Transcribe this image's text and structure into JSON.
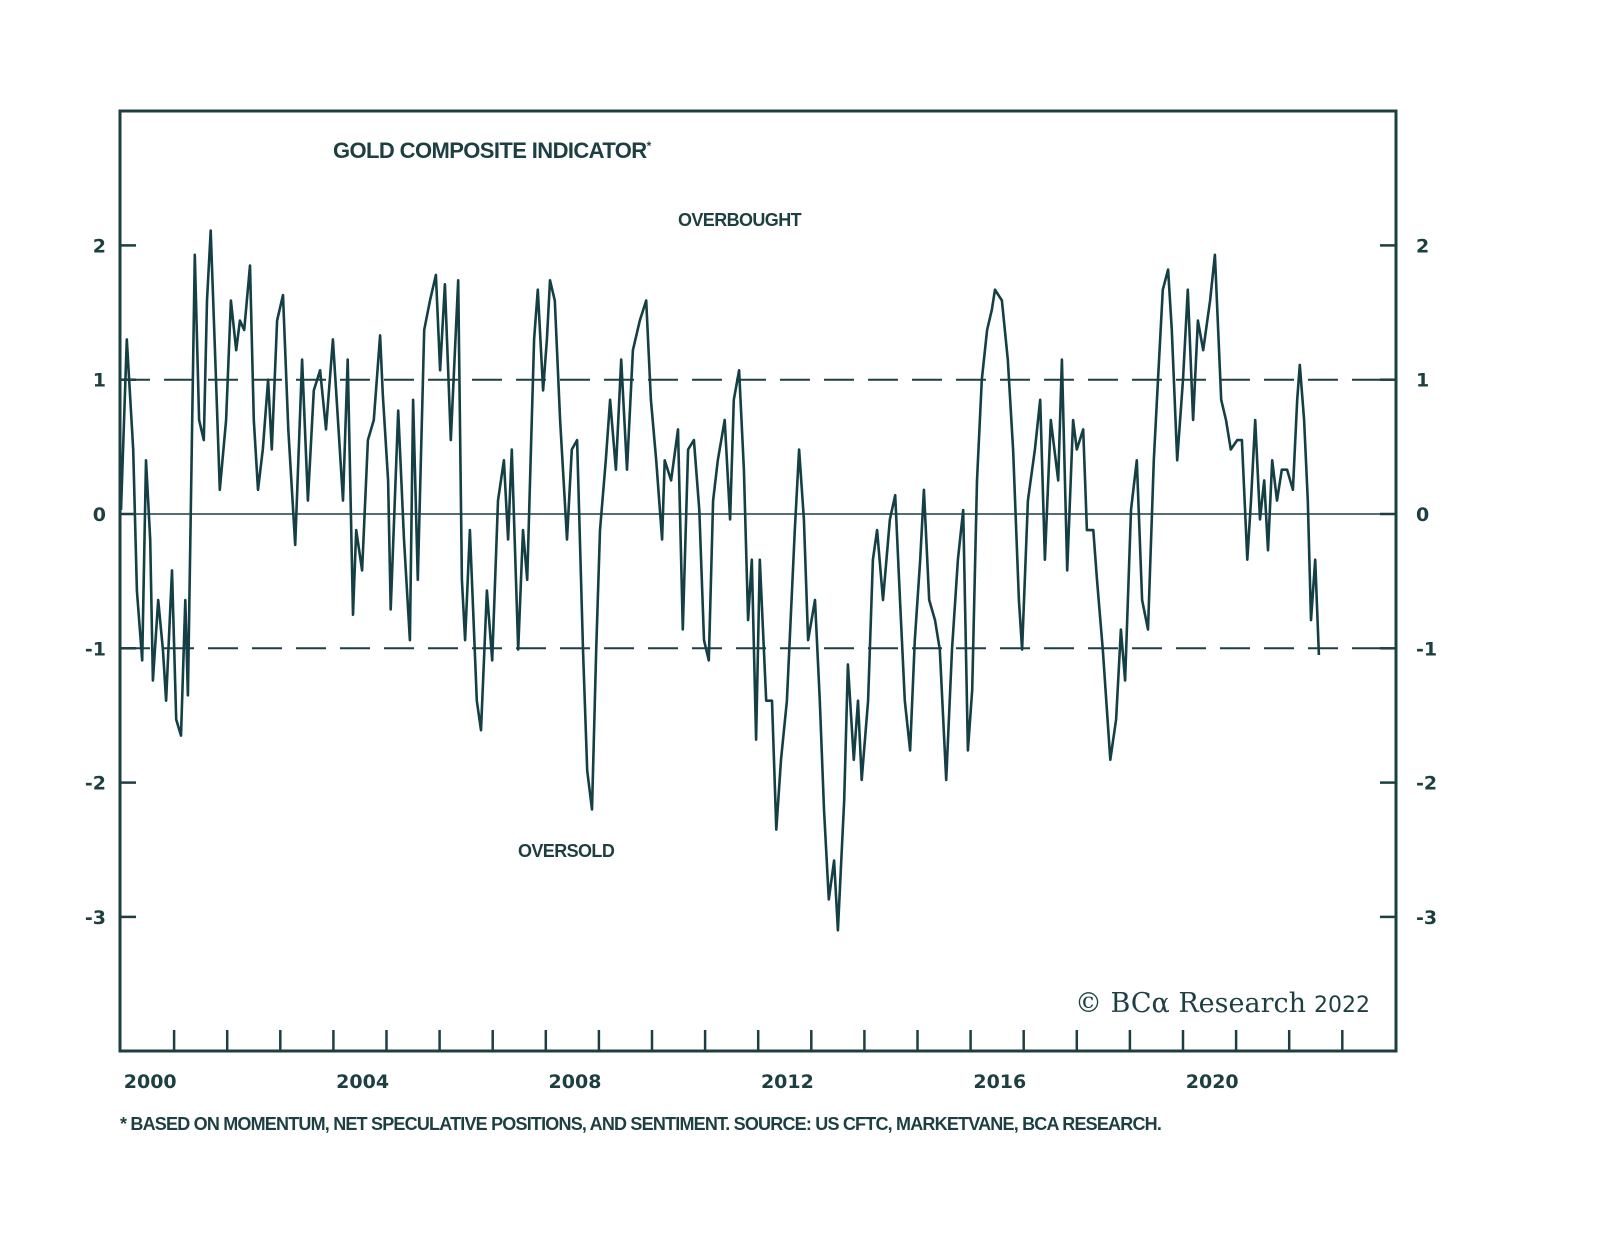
{
  "chart_data": {
    "type": "line",
    "title": "GOLD COMPOSITE INDICATOR",
    "title_marker": "*",
    "annotations": {
      "overbought": "OVERBOUGHT",
      "oversold": "OVERSOLD"
    },
    "footnote": "* BASED ON MOMENTUM, NET SPECULATIVE POSITIONS, AND SENTIMENT. SOURCE: US CFTC, MARKETVANE, BCA RESEARCH.",
    "copyright": {
      "text": "© BCα Research",
      "year": "2022"
    },
    "xlim": [
      2000,
      2023.6
    ],
    "ylim": [
      -4,
      3
    ],
    "x_ticks": [
      2000,
      2004,
      2008,
      2012,
      2016,
      2020
    ],
    "x_tick_labels": [
      "2000",
      "2004",
      "2008",
      "2012",
      "2016",
      "2020"
    ],
    "y_ticks": [
      2,
      1,
      0,
      -1,
      -2,
      -3
    ],
    "y_tick_labels": [
      "2",
      "1",
      "0",
      "-1",
      "-2",
      "-3"
    ],
    "reference_lines": [
      {
        "y": 1,
        "style": "dashed"
      },
      {
        "y": 0,
        "style": "solid"
      },
      {
        "y": -1,
        "style": "dashed"
      }
    ],
    "grid": false,
    "colors": {
      "line": "#143f44",
      "axis": "#1d3f42"
    },
    "series": [
      {
        "points": [
          [
            2000.0,
            0.03
          ],
          [
            2000.11,
            1.3
          ],
          [
            2000.23,
            0.48
          ],
          [
            2000.3,
            -0.57
          ],
          [
            2000.4,
            -1.09
          ],
          [
            2000.47,
            0.4
          ],
          [
            2000.55,
            -0.19
          ],
          [
            2000.6,
            -1.24
          ],
          [
            2000.7,
            -0.64
          ],
          [
            2000.79,
            -1.01
          ],
          [
            2000.85,
            -1.39
          ],
          [
            2000.96,
            -0.42
          ],
          [
            2001.04,
            -1.53
          ],
          [
            2001.13,
            -1.65
          ],
          [
            2001.21,
            -0.64
          ],
          [
            2001.26,
            -1.35
          ],
          [
            2001.39,
            1.93
          ],
          [
            2001.47,
            0.7
          ],
          [
            2001.56,
            0.55
          ],
          [
            2001.62,
            1.59
          ],
          [
            2001.69,
            2.11
          ],
          [
            2001.79,
            1.0
          ],
          [
            2001.86,
            0.18
          ],
          [
            2001.98,
            0.7
          ],
          [
            2002.07,
            1.59
          ],
          [
            2002.17,
            1.22
          ],
          [
            2002.24,
            1.44
          ],
          [
            2002.32,
            1.37
          ],
          [
            2002.43,
            1.85
          ],
          [
            2002.5,
            0.7
          ],
          [
            2002.58,
            0.18
          ],
          [
            2002.67,
            0.48
          ],
          [
            2002.77,
            1.0
          ],
          [
            2002.84,
            0.48
          ],
          [
            2002.94,
            1.44
          ],
          [
            2003.05,
            1.63
          ],
          [
            2003.15,
            0.63
          ],
          [
            2003.28,
            -0.23
          ],
          [
            2003.41,
            1.15
          ],
          [
            2003.52,
            0.1
          ],
          [
            2003.63,
            0.92
          ],
          [
            2003.75,
            1.07
          ],
          [
            2003.86,
            0.63
          ],
          [
            2003.99,
            1.3
          ],
          [
            2004.12,
            0.48
          ],
          [
            2004.18,
            0.1
          ],
          [
            2004.27,
            1.15
          ],
          [
            2004.37,
            -0.75
          ],
          [
            2004.43,
            -0.12
          ],
          [
            2004.54,
            -0.42
          ],
          [
            2004.65,
            0.55
          ],
          [
            2004.76,
            0.7
          ],
          [
            2004.88,
            1.33
          ],
          [
            2004.93,
            0.89
          ],
          [
            2005.03,
            0.25
          ],
          [
            2005.08,
            -0.71
          ],
          [
            2005.22,
            0.77
          ],
          [
            2005.33,
            -0.19
          ],
          [
            2005.44,
            -0.94
          ],
          [
            2005.5,
            0.85
          ],
          [
            2005.59,
            -0.49
          ],
          [
            2005.71,
            1.37
          ],
          [
            2005.82,
            1.59
          ],
          [
            2005.93,
            1.78
          ],
          [
            2006.01,
            1.07
          ],
          [
            2006.1,
            1.71
          ],
          [
            2006.21,
            0.55
          ],
          [
            2006.35,
            1.74
          ],
          [
            2006.42,
            -0.49
          ],
          [
            2006.48,
            -0.94
          ],
          [
            2006.57,
            -0.12
          ],
          [
            2006.7,
            -1.39
          ],
          [
            2006.78,
            -1.61
          ],
          [
            2006.89,
            -0.57
          ],
          [
            2006.99,
            -1.09
          ],
          [
            2007.1,
            0.1
          ],
          [
            2007.21,
            0.4
          ],
          [
            2007.29,
            -0.19
          ],
          [
            2007.36,
            0.48
          ],
          [
            2007.48,
            -1.01
          ],
          [
            2007.57,
            -0.12
          ],
          [
            2007.65,
            -0.49
          ],
          [
            2007.78,
            1.3
          ],
          [
            2007.85,
            1.67
          ],
          [
            2007.95,
            0.92
          ],
          [
            2008.02,
            1.3
          ],
          [
            2008.08,
            1.74
          ],
          [
            2008.17,
            1.59
          ],
          [
            2008.27,
            0.7
          ],
          [
            2008.4,
            -0.19
          ],
          [
            2008.49,
            0.48
          ],
          [
            2008.59,
            0.55
          ],
          [
            2008.7,
            -1.01
          ],
          [
            2008.78,
            -1.91
          ],
          [
            2008.87,
            -2.2
          ],
          [
            2008.95,
            -1.01
          ],
          [
            2009.02,
            -0.12
          ],
          [
            2009.13,
            0.4
          ],
          [
            2009.21,
            0.85
          ],
          [
            2009.32,
            0.33
          ],
          [
            2009.42,
            1.15
          ],
          [
            2009.53,
            0.33
          ],
          [
            2009.64,
            1.22
          ],
          [
            2009.77,
            1.44
          ],
          [
            2009.89,
            1.59
          ],
          [
            2009.98,
            0.85
          ],
          [
            2010.08,
            0.4
          ],
          [
            2010.19,
            -0.19
          ],
          [
            2010.24,
            0.4
          ],
          [
            2010.36,
            0.25
          ],
          [
            2010.49,
            0.63
          ],
          [
            2010.58,
            -0.86
          ],
          [
            2010.68,
            0.48
          ],
          [
            2010.79,
            0.55
          ],
          [
            2010.89,
            0.03
          ],
          [
            2010.98,
            -0.94
          ],
          [
            2011.07,
            -1.09
          ],
          [
            2011.15,
            0.1
          ],
          [
            2011.24,
            0.4
          ],
          [
            2011.37,
            0.7
          ],
          [
            2011.47,
            -0.04
          ],
          [
            2011.54,
            0.85
          ],
          [
            2011.64,
            1.07
          ],
          [
            2011.73,
            0.33
          ],
          [
            2011.81,
            -0.79
          ],
          [
            2011.88,
            -0.34
          ],
          [
            2011.96,
            -1.68
          ],
          [
            2012.03,
            -0.34
          ],
          [
            2012.15,
            -1.39
          ],
          [
            2012.26,
            -1.39
          ],
          [
            2012.34,
            -2.35
          ],
          [
            2012.43,
            -1.83
          ],
          [
            2012.54,
            -1.39
          ],
          [
            2012.69,
            -0.12
          ],
          [
            2012.77,
            0.48
          ],
          [
            2012.86,
            -0.04
          ],
          [
            2012.94,
            -0.94
          ],
          [
            2013.07,
            -0.64
          ],
          [
            2013.16,
            -1.39
          ],
          [
            2013.24,
            -2.2
          ],
          [
            2013.33,
            -2.87
          ],
          [
            2013.43,
            -2.58
          ],
          [
            2013.5,
            -3.1
          ],
          [
            2013.62,
            -2.13
          ],
          [
            2013.69,
            -1.12
          ],
          [
            2013.8,
            -1.83
          ],
          [
            2013.88,
            -1.39
          ],
          [
            2013.95,
            -1.98
          ],
          [
            2014.07,
            -1.39
          ],
          [
            2014.16,
            -0.34
          ],
          [
            2014.24,
            -0.12
          ],
          [
            2014.35,
            -0.64
          ],
          [
            2014.48,
            -0.04
          ],
          [
            2014.58,
            0.14
          ],
          [
            2014.67,
            -0.64
          ],
          [
            2014.76,
            -1.39
          ],
          [
            2014.86,
            -1.76
          ],
          [
            2014.95,
            -0.94
          ],
          [
            2015.05,
            -0.34
          ],
          [
            2015.12,
            0.18
          ],
          [
            2015.22,
            -0.64
          ],
          [
            2015.33,
            -0.79
          ],
          [
            2015.42,
            -1.01
          ],
          [
            2015.54,
            -1.98
          ],
          [
            2015.65,
            -1.01
          ],
          [
            2015.76,
            -0.34
          ],
          [
            2015.86,
            0.03
          ],
          [
            2015.95,
            -1.76
          ],
          [
            2016.03,
            -1.31
          ],
          [
            2016.12,
            0.25
          ],
          [
            2016.21,
            1.0
          ],
          [
            2016.31,
            1.37
          ],
          [
            2016.4,
            1.52
          ],
          [
            2016.46,
            1.67
          ],
          [
            2016.59,
            1.59
          ],
          [
            2016.7,
            1.15
          ],
          [
            2016.8,
            0.48
          ],
          [
            2016.91,
            -0.64
          ],
          [
            2016.97,
            -1.01
          ],
          [
            2017.08,
            0.1
          ],
          [
            2017.21,
            0.48
          ],
          [
            2017.31,
            0.85
          ],
          [
            2017.4,
            -0.34
          ],
          [
            2017.51,
            0.7
          ],
          [
            2017.65,
            0.25
          ],
          [
            2017.72,
            1.15
          ],
          [
            2017.82,
            -0.42
          ],
          [
            2017.93,
            0.7
          ],
          [
            2018.0,
            0.48
          ],
          [
            2018.12,
            0.63
          ],
          [
            2018.19,
            -0.12
          ],
          [
            2018.31,
            -0.12
          ],
          [
            2018.38,
            -0.49
          ],
          [
            2018.49,
            -1.01
          ],
          [
            2018.63,
            -1.83
          ],
          [
            2018.74,
            -1.53
          ],
          [
            2018.83,
            -0.86
          ],
          [
            2018.91,
            -1.24
          ],
          [
            2019.02,
            0.03
          ],
          [
            2019.13,
            0.4
          ],
          [
            2019.23,
            -0.64
          ],
          [
            2019.34,
            -0.86
          ],
          [
            2019.45,
            0.4
          ],
          [
            2019.53,
            1.0
          ],
          [
            2019.62,
            1.67
          ],
          [
            2019.72,
            1.82
          ],
          [
            2019.79,
            1.37
          ],
          [
            2019.89,
            0.4
          ],
          [
            2020.0,
            1.0
          ],
          [
            2020.09,
            1.67
          ],
          [
            2020.19,
            0.7
          ],
          [
            2020.28,
            1.44
          ],
          [
            2020.38,
            1.22
          ],
          [
            2020.51,
            1.59
          ],
          [
            2020.6,
            1.93
          ],
          [
            2020.72,
            0.85
          ],
          [
            2020.81,
            0.7
          ],
          [
            2020.9,
            0.48
          ],
          [
            2021.02,
            0.55
          ],
          [
            2021.11,
            0.55
          ],
          [
            2021.21,
            -0.34
          ],
          [
            2021.28,
            0.1
          ],
          [
            2021.36,
            0.7
          ],
          [
            2021.45,
            -0.04
          ],
          [
            2021.53,
            0.25
          ],
          [
            2021.6,
            -0.27
          ],
          [
            2021.68,
            0.4
          ],
          [
            2021.77,
            0.1
          ],
          [
            2021.86,
            0.33
          ],
          [
            2021.96,
            0.33
          ],
          [
            2022.07,
            0.18
          ],
          [
            2022.15,
            0.85
          ],
          [
            2022.2,
            1.11
          ],
          [
            2022.28,
            0.7
          ],
          [
            2022.35,
            0.1
          ],
          [
            2022.41,
            -0.79
          ],
          [
            2022.49,
            -0.34
          ],
          [
            2022.56,
            -1.05
          ]
        ]
      }
    ]
  }
}
